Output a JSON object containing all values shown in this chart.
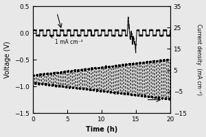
{
  "xlabel": "Time (h)",
  "ylabel_left": "Voltage (V)",
  "ylabel_right": "Current density  (mA cm⁻²)",
  "xlim": [
    0,
    20
  ],
  "ylim_left": [
    -1.5,
    0.5
  ],
  "ylim_right": [
    -15,
    35
  ],
  "yticks_left": [
    -1.5,
    -1.0,
    -0.5,
    0.0,
    0.5
  ],
  "yticks_right": [
    -15,
    -5,
    5,
    15,
    25,
    35
  ],
  "xticks": [
    0,
    5,
    10,
    15,
    20
  ],
  "annotation_text": "1 mA cm⁻²",
  "background_color": "#e8e8e8",
  "solid_line_color": "#000000",
  "dashed_line_color": "#000000"
}
